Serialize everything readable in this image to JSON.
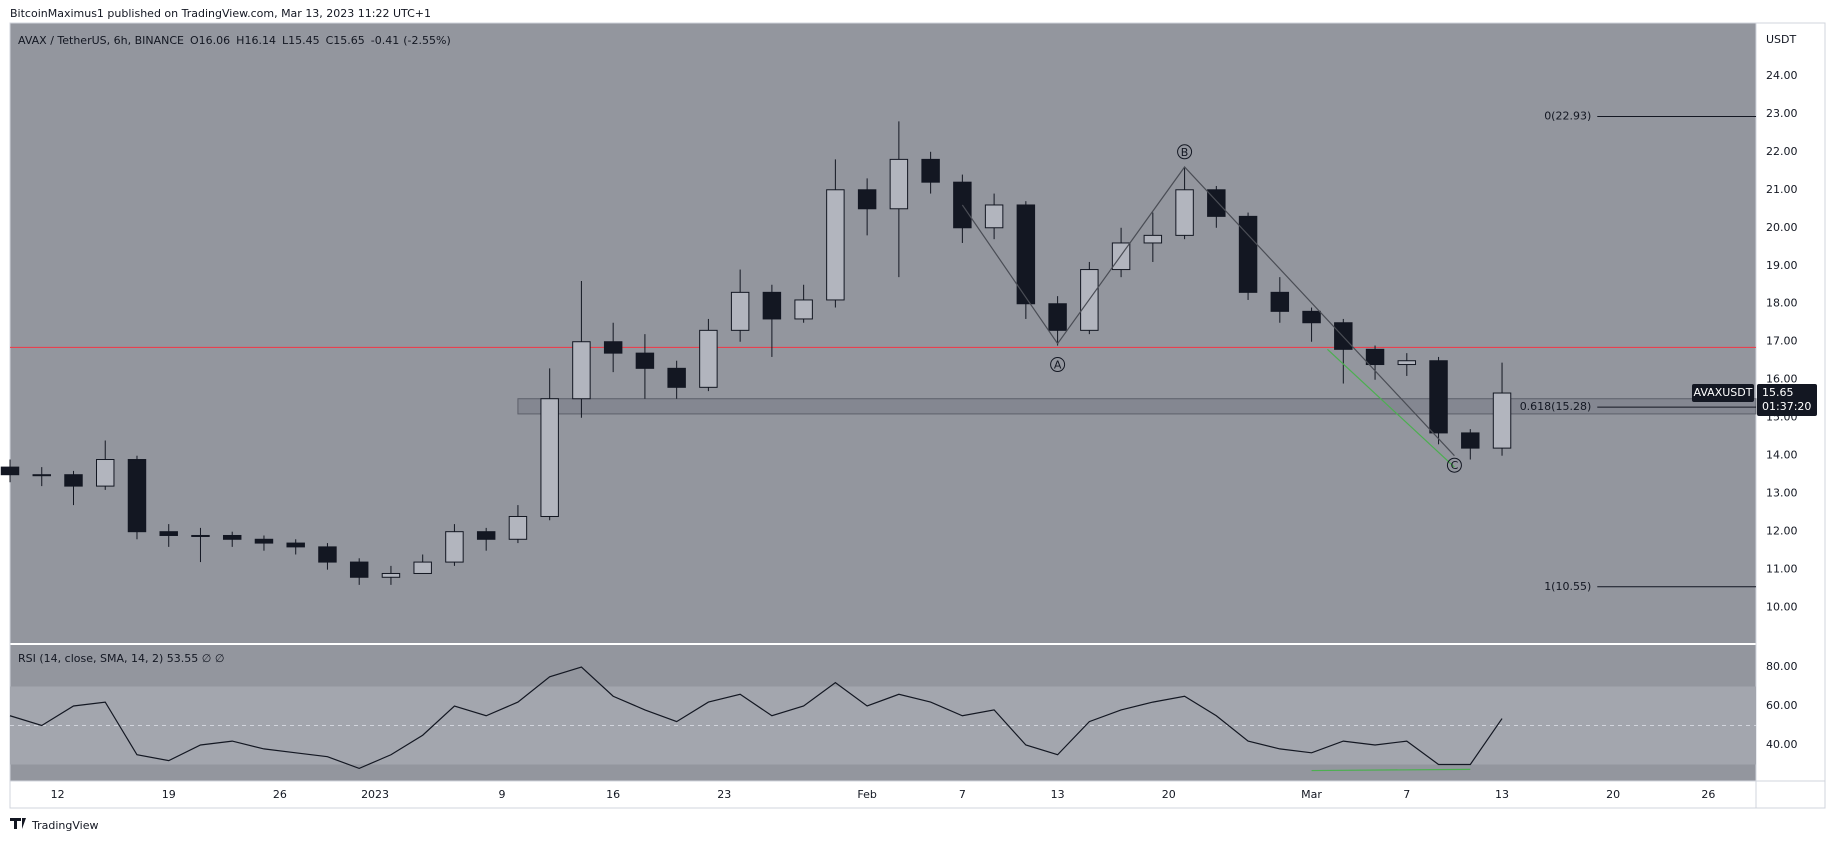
{
  "header": "BitcoinMaximus1 published on TradingView.com, Mar 13, 2023 11:22 UTC+1",
  "footer": "TradingView",
  "chart_data": [
    {
      "type": "candlestick",
      "title": "AVAX / TetherUS, 6h, BINANCE",
      "legend": [
        {
          "label": "O",
          "value": 16.06
        },
        {
          "label": "H",
          "value": 16.14
        },
        {
          "label": "L",
          "value": 15.45
        },
        {
          "label": "C",
          "value": 15.65
        }
      ],
      "change": -0.41,
      "change_pct": "(-2.55%)",
      "unit": "USDT",
      "x": [
        "2022-12-09",
        "2022-12-11",
        "2022-12-13",
        "2022-12-15",
        "2022-12-17",
        "2022-12-19",
        "2022-12-21",
        "2022-12-23",
        "2022-12-25",
        "2022-12-27",
        "2022-12-29",
        "2022-12-31",
        "2023-01-02",
        "2023-01-04",
        "2023-01-06",
        "2023-01-08",
        "2023-01-10",
        "2023-01-12",
        "2023-01-14",
        "2023-01-16",
        "2023-01-18",
        "2023-01-20",
        "2023-01-22",
        "2023-01-24",
        "2023-01-26",
        "2023-01-28",
        "2023-01-30",
        "2023-02-01",
        "2023-02-03",
        "2023-02-05",
        "2023-02-07",
        "2023-02-09",
        "2023-02-11",
        "2023-02-13",
        "2023-02-15",
        "2023-02-17",
        "2023-02-19",
        "2023-02-21",
        "2023-02-23",
        "2023-02-25",
        "2023-02-27",
        "2023-03-01",
        "2023-03-03",
        "2023-03-05",
        "2023-03-07",
        "2023-03-09",
        "2023-03-11",
        "2023-03-13"
      ],
      "open": [
        13.7,
        13.5,
        13.5,
        13.2,
        13.9,
        12.0,
        11.9,
        11.9,
        11.8,
        11.7,
        11.6,
        11.2,
        10.8,
        10.9,
        11.2,
        12.0,
        11.8,
        12.4,
        15.5,
        17.0,
        16.7,
        16.3,
        15.8,
        17.3,
        18.3,
        17.6,
        18.1,
        21.0,
        20.5,
        21.8,
        21.2,
        20.0,
        20.6,
        18.0,
        17.3,
        18.9,
        19.6,
        19.8,
        21.0,
        20.3,
        18.3,
        17.8,
        17.5,
        16.8,
        16.4,
        16.5,
        14.6,
        14.2
      ],
      "high": [
        13.9,
        13.7,
        13.6,
        14.4,
        14.0,
        12.2,
        12.1,
        12.0,
        11.9,
        11.8,
        11.7,
        11.3,
        11.1,
        11.4,
        12.2,
        12.1,
        12.7,
        16.3,
        18.6,
        17.5,
        17.2,
        16.5,
        17.6,
        18.9,
        18.5,
        18.5,
        21.8,
        21.3,
        22.8,
        22.0,
        21.4,
        20.9,
        20.7,
        18.2,
        19.1,
        20.0,
        20.4,
        21.6,
        21.1,
        20.4,
        18.7,
        17.9,
        17.6,
        16.9,
        16.7,
        16.6,
        14.7,
        16.45
      ],
      "low": [
        13.3,
        13.2,
        12.7,
        13.1,
        11.8,
        11.6,
        11.2,
        11.6,
        11.5,
        11.4,
        11.0,
        10.6,
        10.6,
        10.9,
        11.1,
        11.5,
        11.7,
        12.3,
        15.0,
        16.2,
        15.5,
        15.5,
        15.7,
        17.0,
        16.6,
        17.5,
        17.9,
        19.8,
        18.7,
        20.9,
        19.6,
        19.7,
        17.6,
        16.9,
        17.2,
        18.7,
        19.1,
        19.7,
        20.0,
        18.1,
        17.5,
        17.0,
        15.9,
        16.0,
        16.1,
        14.3,
        13.9,
        14.0
      ],
      "close": [
        13.5,
        13.5,
        13.2,
        13.9,
        12.0,
        11.9,
        11.9,
        11.8,
        11.7,
        11.6,
        11.2,
        10.8,
        10.9,
        11.2,
        12.0,
        11.8,
        12.4,
        15.5,
        17.0,
        16.7,
        16.3,
        15.8,
        17.3,
        18.3,
        17.6,
        18.1,
        21.0,
        20.5,
        21.8,
        21.2,
        20.0,
        20.6,
        18.0,
        17.3,
        18.9,
        19.6,
        19.8,
        21.0,
        20.3,
        18.3,
        17.8,
        17.5,
        16.8,
        16.4,
        16.5,
        14.6,
        14.2,
        15.65
      ],
      "up_color": "#b2b5be",
      "down_color": "#131722",
      "xlim": [
        "2022-12-09",
        "2023-03-29"
      ],
      "ylim": [
        9.07,
        25.39
      ],
      "yticks": [
        {
          "value": 10,
          "label": "10.00"
        },
        {
          "value": 11,
          "label": "11.00"
        },
        {
          "value": 12,
          "label": "12.00"
        },
        {
          "value": 13,
          "label": "13.00"
        },
        {
          "value": 14,
          "label": "14.00"
        },
        {
          "value": 15,
          "label": "15.00"
        },
        {
          "value": 16,
          "label": "16.00"
        },
        {
          "value": 17,
          "label": "17.00"
        },
        {
          "value": 18,
          "label": "18.00"
        },
        {
          "value": 19,
          "label": "19.00"
        },
        {
          "value": 20,
          "label": "20.00"
        },
        {
          "value": 21,
          "label": "21.00"
        },
        {
          "value": 22,
          "label": "22.00"
        },
        {
          "value": 23,
          "label": "23.00"
        },
        {
          "value": 24,
          "label": "24.00"
        }
      ],
      "hline": {
        "value": 16.85,
        "color": "#f23645"
      },
      "zone": {
        "from": 15.1,
        "to": 15.5,
        "start": "2023-01-10",
        "color": "#787b86"
      },
      "lines": [
        {
          "color": "#4a4d55",
          "x": [
            "2023-02-07",
            "2023-02-13",
            "2023-02-21",
            "2023-03-10"
          ],
          "y": [
            20.6,
            16.95,
            21.6,
            14.0
          ]
        },
        {
          "color": "#4caf50",
          "x": [
            "2023-03-02",
            "2023-03-10"
          ],
          "y": [
            16.8,
            13.7
          ]
        }
      ],
      "wave_labels": [
        {
          "label": "A",
          "x": "2023-02-13",
          "y": 16.4
        },
        {
          "label": "B",
          "x": "2023-02-21",
          "y": 22.0
        },
        {
          "label": "C",
          "x": "2023-03-10",
          "y": 13.75
        }
      ],
      "fib_start": "2023-03-19",
      "fib_levels": [
        {
          "value": 22.93,
          "label": "0(22.93)"
        },
        {
          "value": 15.28,
          "label": "0.618(15.28)"
        },
        {
          "value": 10.55,
          "label": "1(10.55)"
        }
      ],
      "last_price": {
        "symbol": "AVAXUSDT",
        "countdown": "01:37:20"
      }
    },
    {
      "type": "line",
      "title": "RSI (14, close, SMA, 14, 2)",
      "legend_extra": "∅ ∅",
      "x": [
        "2022-12-09",
        "2022-12-11",
        "2022-12-13",
        "2022-12-15",
        "2022-12-17",
        "2022-12-19",
        "2022-12-21",
        "2022-12-23",
        "2022-12-25",
        "2022-12-27",
        "2022-12-29",
        "2022-12-31",
        "2023-01-02",
        "2023-01-04",
        "2023-01-06",
        "2023-01-08",
        "2023-01-10",
        "2023-01-12",
        "2023-01-14",
        "2023-01-16",
        "2023-01-18",
        "2023-01-20",
        "2023-01-22",
        "2023-01-24",
        "2023-01-26",
        "2023-01-28",
        "2023-01-30",
        "2023-02-01",
        "2023-02-03",
        "2023-02-05",
        "2023-02-07",
        "2023-02-09",
        "2023-02-11",
        "2023-02-13",
        "2023-02-15",
        "2023-02-17",
        "2023-02-19",
        "2023-02-21",
        "2023-02-23",
        "2023-02-25",
        "2023-02-27",
        "2023-03-01",
        "2023-03-03",
        "2023-03-05",
        "2023-03-07",
        "2023-03-09",
        "2023-03-11",
        "2023-03-13"
      ],
      "series": [
        {
          "name": "RSI",
          "color": "#131722",
          "values": [
            55,
            50,
            60,
            62,
            35,
            32,
            40,
            42,
            38,
            36,
            34,
            28,
            35,
            45,
            60,
            55,
            62,
            75,
            80,
            65,
            58,
            52,
            62,
            66,
            55,
            60,
            72,
            60,
            66,
            62,
            55,
            58,
            40,
            35,
            52,
            58,
            62,
            65,
            55,
            42,
            38,
            36,
            42,
            40,
            42,
            30,
            30,
            53.55
          ]
        }
      ],
      "band": [
        30,
        70
      ],
      "midline": 50,
      "lines": [
        {
          "color": "#4caf50",
          "x": [
            "2023-03-01",
            "2023-03-11"
          ],
          "y": [
            26.9,
            27.5
          ]
        }
      ],
      "xlim": [
        "2022-12-09",
        "2023-03-29"
      ],
      "ylim": [
        21.54,
        91.28
      ],
      "yticks": [
        {
          "value": 40,
          "label": "40.00"
        },
        {
          "value": 60,
          "label": "60.00"
        },
        {
          "value": 80,
          "label": "80.00"
        }
      ],
      "xticks": [
        {
          "value": "2022-12-12",
          "label": "12"
        },
        {
          "value": "2022-12-19",
          "label": "19"
        },
        {
          "value": "2022-12-26",
          "label": "26"
        },
        {
          "value": "2023-01-01",
          "label": "2023"
        },
        {
          "value": "2023-01-09",
          "label": "9"
        },
        {
          "value": "2023-01-16",
          "label": "16"
        },
        {
          "value": "2023-01-23",
          "label": "23"
        },
        {
          "value": "2023-02-01",
          "label": "Feb"
        },
        {
          "value": "2023-02-07",
          "label": "7"
        },
        {
          "value": "2023-02-13",
          "label": "13"
        },
        {
          "value": "2023-02-20",
          "label": "20"
        },
        {
          "value": "2023-03-01",
          "label": "Mar"
        },
        {
          "value": "2023-03-07",
          "label": "7"
        },
        {
          "value": "2023-03-13",
          "label": "13"
        },
        {
          "value": "2023-03-20",
          "label": "20"
        },
        {
          "value": "2023-03-26",
          "label": "26"
        }
      ]
    }
  ]
}
